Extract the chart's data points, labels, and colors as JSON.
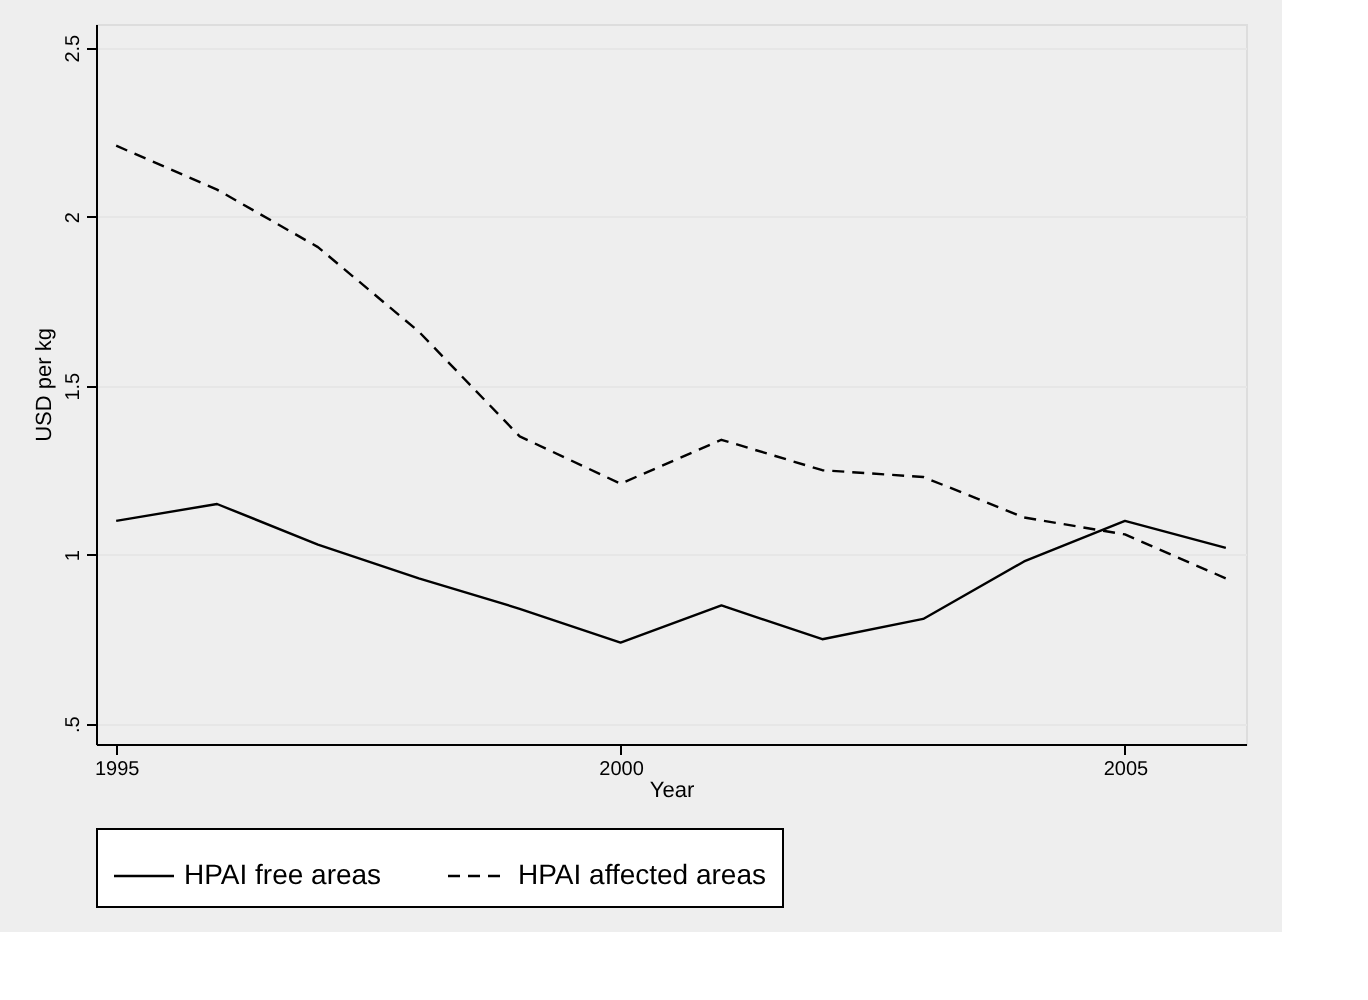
{
  "chart_data": {
    "type": "line",
    "xlabel": "Year",
    "ylabel": "USD per kg",
    "x": [
      1995,
      1996,
      1997,
      1998,
      1999,
      2000,
      2001,
      2002,
      2003,
      2004,
      2005,
      2006
    ],
    "series": [
      {
        "name": "HPAI free areas",
        "color": "#000000",
        "line_style": "solid",
        "values": [
          1.1,
          1.15,
          1.03,
          0.93,
          0.84,
          0.74,
          0.85,
          0.75,
          0.81,
          0.98,
          1.1,
          1.02
        ]
      },
      {
        "name": "HPAI affected areas",
        "color": "#000000",
        "line_style": "dashed",
        "values": [
          2.21,
          2.08,
          1.91,
          1.66,
          1.35,
          1.21,
          1.34,
          1.25,
          1.23,
          1.11,
          1.06,
          0.93
        ]
      }
    ],
    "xlim": [
      1994.8,
      2006.2
    ],
    "xticks": [
      1995,
      2000,
      2005
    ],
    "ylim": [
      0.44,
      2.57
    ],
    "yticks": [
      {
        "value": 0.5,
        "label": ".5"
      },
      1,
      1.5,
      2,
      2.5
    ],
    "grid": "y",
    "legend": "bottom",
    "marker": "none"
  }
}
